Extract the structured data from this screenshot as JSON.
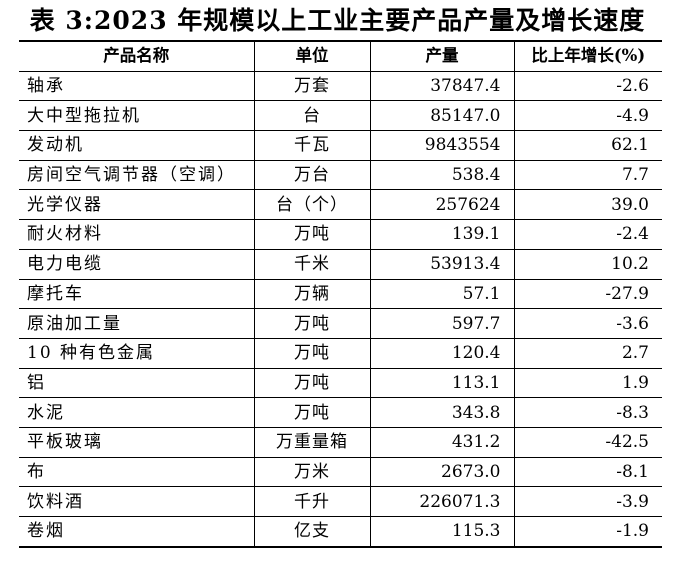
{
  "title": "表 3:2023 年规模以上工业主要产品产量及增长速度",
  "headers": {
    "name": "产品名称",
    "unit": "单位",
    "output": "产量",
    "growth": "比上年增长(%)"
  },
  "rows": [
    {
      "name": "轴承",
      "unit": "万套",
      "output": "37847.4",
      "growth": "-2.6"
    },
    {
      "name": "大中型拖拉机",
      "unit": "台",
      "output": "85147.0",
      "growth": "-4.9"
    },
    {
      "name": "发动机",
      "unit": "千瓦",
      "output": "9843554",
      "growth": "62.1"
    },
    {
      "name": "房间空气调节器（空调）",
      "unit": "万台",
      "output": "538.4",
      "growth": "7.7"
    },
    {
      "name": "光学仪器",
      "unit": "台（个）",
      "output": "257624",
      "growth": "39.0"
    },
    {
      "name": "耐火材料",
      "unit": "万吨",
      "output": "139.1",
      "growth": "-2.4"
    },
    {
      "name": "电力电缆",
      "unit": "千米",
      "output": "53913.4",
      "growth": "10.2"
    },
    {
      "name": "摩托车",
      "unit": "万辆",
      "output": "57.1",
      "growth": "-27.9"
    },
    {
      "name": "原油加工量",
      "unit": "万吨",
      "output": "597.7",
      "growth": "-3.6"
    },
    {
      "name": "10 种有色金属",
      "unit": "万吨",
      "output": "120.4",
      "growth": "2.7"
    },
    {
      "name": "铝",
      "unit": "万吨",
      "output": "113.1",
      "growth": "1.9"
    },
    {
      "name": "水泥",
      "unit": "万吨",
      "output": "343.8",
      "growth": "-8.3"
    },
    {
      "name": "平板玻璃",
      "unit": "万重量箱",
      "output": "431.2",
      "growth": "-42.5"
    },
    {
      "name": "布",
      "unit": "万米",
      "output": "2673.0",
      "growth": "-8.1"
    },
    {
      "name": "饮料酒",
      "unit": "千升",
      "output": "226071.3",
      "growth": "-3.9"
    },
    {
      "name": "卷烟",
      "unit": "亿支",
      "output": "115.3",
      "growth": "-1.9"
    }
  ]
}
